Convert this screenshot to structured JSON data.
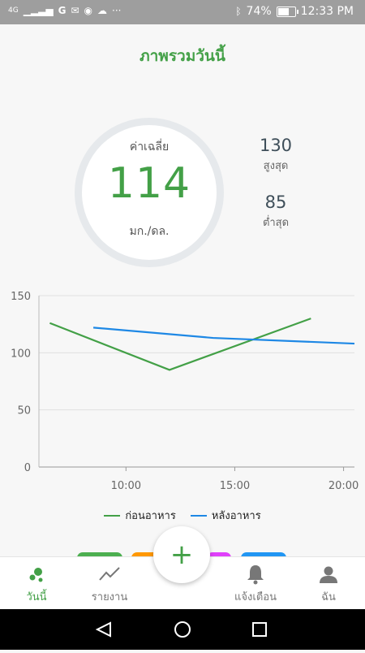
{
  "status_bar": {
    "left_text": "4G",
    "left_icons": [
      "signal-icon",
      "google-icon",
      "gmail-icon",
      "panda-icon",
      "cloud-icon",
      "ellipsis-icon"
    ],
    "battery": "74%",
    "battery_level": 0.74,
    "time": "12:33 PM"
  },
  "header": {
    "title": "ภาพรวมวันนี้"
  },
  "summary": {
    "average_label": "ค่าเฉลี่ย",
    "average_value": "114",
    "unit": "มก./ดล.",
    "max_value": "130",
    "max_label": "สูงสุด",
    "min_value": "85",
    "min_label": "ต่ำสุด"
  },
  "chart_data": {
    "type": "line",
    "x_ticks": [
      "10:00",
      "15:00",
      "20:00"
    ],
    "y_ticks": [
      "0",
      "50",
      "100",
      "150"
    ],
    "xlim": [
      "6:00",
      "20:30"
    ],
    "ylim": [
      0,
      150
    ],
    "grid": true,
    "legend": "bottom",
    "series": [
      {
        "name": "ก่อนอาหาร",
        "color": "#43a047",
        "x": [
          "6:30",
          "12:00",
          "18:30"
        ],
        "y": [
          126,
          85,
          130
        ]
      },
      {
        "name": "หลังอาหาร",
        "color": "#1e88e5",
        "x": [
          "8:30",
          "14:00",
          "20:30"
        ],
        "y": [
          122,
          113,
          108
        ]
      }
    ]
  },
  "pills": [
    "#4caf50",
    "#ff9800",
    "#e040fb",
    "#2196f3"
  ],
  "fab_label": "+",
  "nav": [
    {
      "label": "วันนี้",
      "icon": "dots-icon",
      "active": true
    },
    {
      "label": "รายงาน",
      "icon": "trend-icon",
      "active": false
    },
    {
      "label": "แจ้งเตือน",
      "icon": "bell-icon",
      "active": false
    },
    {
      "label": "ฉัน",
      "icon": "person-icon",
      "active": false
    }
  ]
}
